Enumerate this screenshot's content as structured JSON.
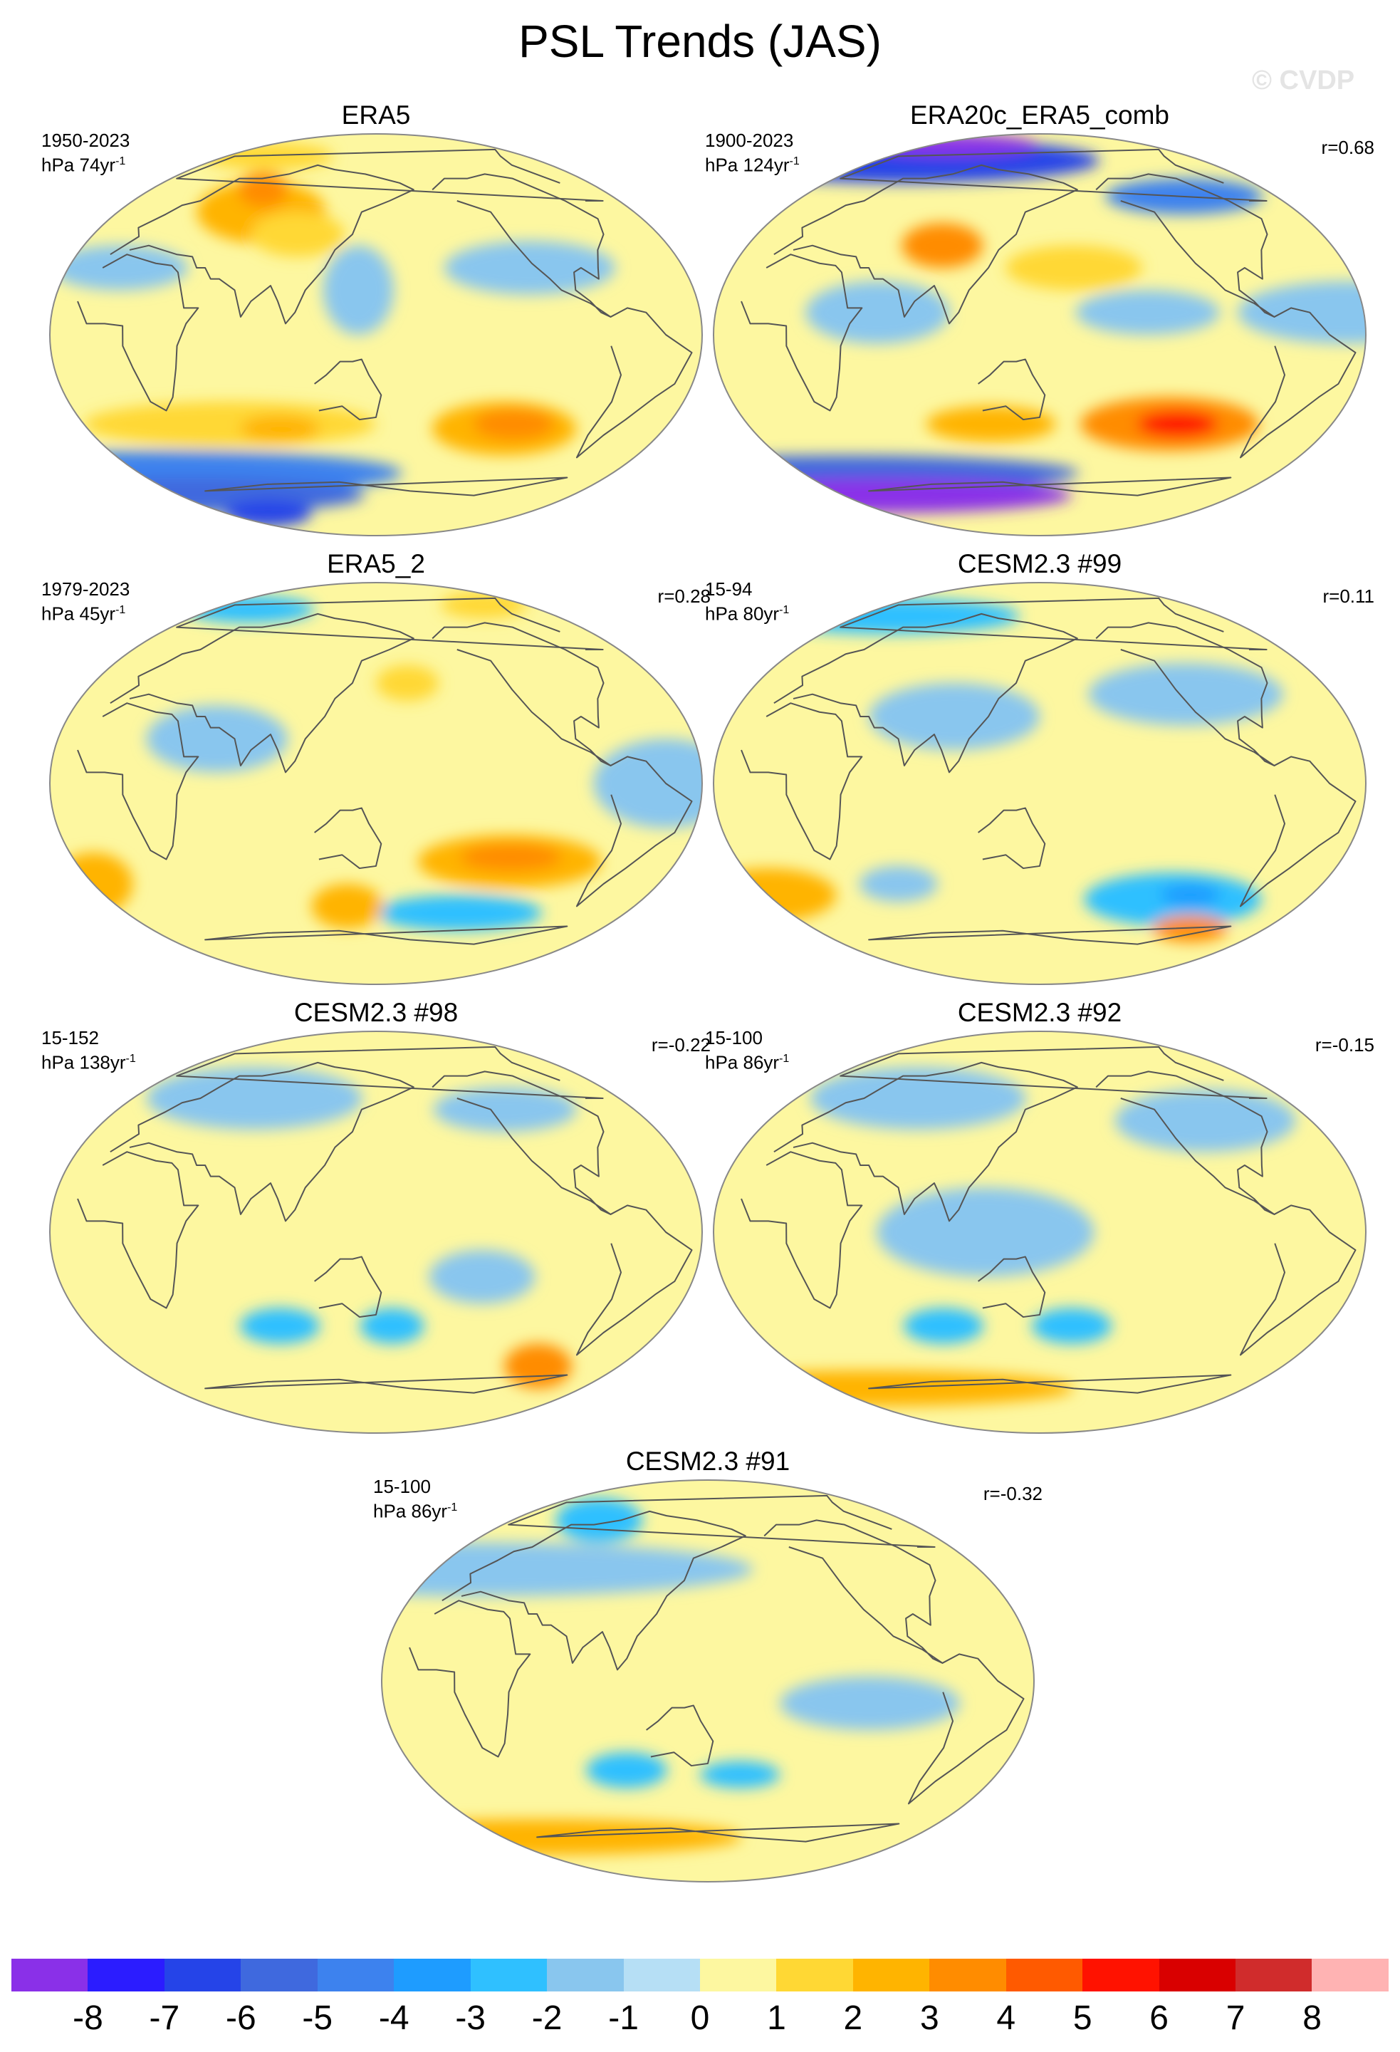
{
  "title": "PSL Trends (JAS)",
  "watermark": "© CVDP",
  "palette": {
    "ocean_neutral": "#fdf7a0",
    "coast": "#555555",
    "edge": "#888888"
  },
  "panels": [
    {
      "title": "ERA5",
      "years": "1950-2023",
      "units": "hPa 74yr",
      "unit_exp": "-1",
      "corr": "",
      "blobs": [
        {
          "lon": -10,
          "lat": -62,
          "rx": 180,
          "ry": 10,
          "level": -4
        },
        {
          "lon": -20,
          "lat": -72,
          "rx": 160,
          "ry": 8,
          "level": -5
        },
        {
          "lon": 20,
          "lat": -80,
          "rx": 40,
          "ry": 6,
          "level": -6
        },
        {
          "lon": -130,
          "lat": -42,
          "rx": 45,
          "ry": 12,
          "level": 2
        },
        {
          "lon": -125,
          "lat": -40,
          "rx": 25,
          "ry": 7,
          "level": 3
        },
        {
          "lon": 60,
          "lat": -40,
          "rx": 90,
          "ry": 10,
          "level": 1
        },
        {
          "lon": 90,
          "lat": -42,
          "rx": 25,
          "ry": 6,
          "level": 2
        },
        {
          "lon": 70,
          "lat": 55,
          "rx": 45,
          "ry": 14,
          "level": 2
        },
        {
          "lon": 60,
          "lat": 65,
          "rx": 20,
          "ry": 8,
          "level": 3
        },
        {
          "lon": 100,
          "lat": 45,
          "rx": 30,
          "ry": 10,
          "level": 1
        },
        {
          "lon": -120,
          "lat": 30,
          "rx": 50,
          "ry": 12,
          "level": -1
        },
        {
          "lon": 0,
          "lat": 30,
          "rx": 40,
          "ry": 10,
          "level": -1
        },
        {
          "lon": 140,
          "lat": 20,
          "rx": 20,
          "ry": 20,
          "level": -1
        },
        {
          "lon": 20,
          "lat": 80,
          "rx": 60,
          "ry": 6,
          "level": 1
        }
      ]
    },
    {
      "title": "ERA20c_ERA5_comb",
      "years": "1900-2023",
      "units": "hPa 124yr",
      "unit_exp": "-1",
      "corr": "r=0.68",
      "blobs": [
        {
          "lon": 0,
          "lat": 78,
          "rx": 180,
          "ry": 10,
          "level": -6
        },
        {
          "lon": 0,
          "lat": 85,
          "rx": 80,
          "ry": 5,
          "level": -8
        },
        {
          "lon": -100,
          "lat": 62,
          "rx": 60,
          "ry": 8,
          "level": -4
        },
        {
          "lon": 0,
          "lat": -62,
          "rx": 180,
          "ry": 8,
          "level": -5
        },
        {
          "lon": 0,
          "lat": -72,
          "rx": 180,
          "ry": 8,
          "level": -8
        },
        {
          "lon": -130,
          "lat": -40,
          "rx": 55,
          "ry": 12,
          "level": 3
        },
        {
          "lon": -125,
          "lat": -40,
          "rx": 25,
          "ry": 6,
          "level": 5
        },
        {
          "lon": 120,
          "lat": -40,
          "rx": 40,
          "ry": 8,
          "level": 2
        },
        {
          "lon": 170,
          "lat": 30,
          "rx": 40,
          "ry": 10,
          "level": 1
        },
        {
          "lon": 90,
          "lat": 40,
          "rx": 25,
          "ry": 10,
          "level": 3
        },
        {
          "lon": -40,
          "lat": 10,
          "rx": 60,
          "ry": 14,
          "level": -1
        },
        {
          "lon": 60,
          "lat": 10,
          "rx": 40,
          "ry": 14,
          "level": -1
        },
        {
          "lon": -150,
          "lat": 10,
          "rx": 40,
          "ry": 10,
          "level": -1
        }
      ]
    },
    {
      "title": "ERA5_2",
      "years": "1979-2023",
      "units": "hPa 45yr",
      "unit_exp": "-1",
      "corr": "r=0.28",
      "blobs": [
        {
          "lon": -130,
          "lat": -35,
          "rx": 55,
          "ry": 12,
          "level": 2
        },
        {
          "lon": -130,
          "lat": -33,
          "rx": 30,
          "ry": 6,
          "level": 3
        },
        {
          "lon": -30,
          "lat": -45,
          "rx": 25,
          "ry": 14,
          "level": 2
        },
        {
          "lon": -150,
          "lat": -58,
          "rx": 60,
          "ry": 8,
          "level": -2
        },
        {
          "lon": 130,
          "lat": -55,
          "rx": 25,
          "ry": 10,
          "level": 2
        },
        {
          "lon": 170,
          "lat": 45,
          "rx": 20,
          "ry": 8,
          "level": 1
        },
        {
          "lon": 10,
          "lat": 78,
          "rx": 60,
          "ry": 6,
          "level": -2
        },
        {
          "lon": -80,
          "lat": 80,
          "rx": 40,
          "ry": 6,
          "level": 1
        },
        {
          "lon": 60,
          "lat": 20,
          "rx": 40,
          "ry": 15,
          "level": -1
        },
        {
          "lon": -50,
          "lat": 0,
          "rx": 40,
          "ry": 20,
          "level": -1
        }
      ]
    },
    {
      "title": "CESM2.3 #99",
      "years": "15-94",
      "units": "hPa 80yr",
      "unit_exp": "-1",
      "corr": "r=0.11",
      "blobs": [
        {
          "lon": -120,
          "lat": -52,
          "rx": 60,
          "ry": 12,
          "level": -2
        },
        {
          "lon": -110,
          "lat": -50,
          "rx": 20,
          "ry": 5,
          "level": -3
        },
        {
          "lon": -90,
          "lat": -65,
          "rx": 30,
          "ry": 6,
          "level": 3
        },
        {
          "lon": -30,
          "lat": -50,
          "rx": 45,
          "ry": 12,
          "level": 2
        },
        {
          "lon": 0,
          "lat": 75,
          "rx": 120,
          "ry": 8,
          "level": -2
        },
        {
          "lon": -120,
          "lat": 40,
          "rx": 60,
          "ry": 14,
          "level": -1
        },
        {
          "lon": 100,
          "lat": 30,
          "rx": 50,
          "ry": 15,
          "level": -1
        },
        {
          "lon": 60,
          "lat": -45,
          "rx": 25,
          "ry": 8,
          "level": -1
        }
      ]
    },
    {
      "title": "CESM2.3 #98",
      "years": "15-152",
      "units": "hPa 138yr",
      "unit_exp": "-1",
      "corr": "r=-0.22",
      "blobs": [
        {
          "lon": 90,
          "lat": -42,
          "rx": 25,
          "ry": 8,
          "level": -2
        },
        {
          "lon": 160,
          "lat": -42,
          "rx": 20,
          "ry": 8,
          "level": -2
        },
        {
          "lon": -90,
          "lat": -60,
          "rx": 25,
          "ry": 10,
          "level": 3
        },
        {
          "lon": 60,
          "lat": 60,
          "rx": 80,
          "ry": 14,
          "level": -1
        },
        {
          "lon": -120,
          "lat": 55,
          "rx": 50,
          "ry": 10,
          "level": -1
        },
        {
          "lon": -150,
          "lat": -20,
          "rx": 30,
          "ry": 12,
          "level": -1
        }
      ]
    },
    {
      "title": "CESM2.3 #92",
      "years": "15-100",
      "units": "hPa 86yr",
      "unit_exp": "-1",
      "corr": "r=-0.15",
      "blobs": [
        {
          "lon": 90,
          "lat": -42,
          "rx": 25,
          "ry": 8,
          "level": -2
        },
        {
          "lon": 170,
          "lat": -42,
          "rx": 25,
          "ry": 8,
          "level": -2
        },
        {
          "lon": 0,
          "lat": -70,
          "rx": 180,
          "ry": 8,
          "level": 2
        },
        {
          "lon": 60,
          "lat": 60,
          "rx": 80,
          "ry": 14,
          "level": -1
        },
        {
          "lon": -100,
          "lat": 50,
          "rx": 60,
          "ry": 14,
          "level": -1
        },
        {
          "lon": 120,
          "lat": 0,
          "rx": 60,
          "ry": 20,
          "level": -1
        }
      ]
    },
    {
      "title": "CESM2.3 #91",
      "years": "15-100",
      "units": "hPa 86yr",
      "unit_exp": "-1",
      "corr": "r=-0.32",
      "blobs": [
        {
          "lon": 100,
          "lat": -40,
          "rx": 25,
          "ry": 8,
          "level": -2
        },
        {
          "lon": 170,
          "lat": -42,
          "rx": 25,
          "ry": 6,
          "level": -2
        },
        {
          "lon": 0,
          "lat": -70,
          "rx": 180,
          "ry": 8,
          "level": 2
        },
        {
          "lon": 50,
          "lat": 72,
          "rx": 40,
          "ry": 10,
          "level": -2
        },
        {
          "lon": 0,
          "lat": 50,
          "rx": 180,
          "ry": 12,
          "level": -1
        },
        {
          "lon": -120,
          "lat": -10,
          "rx": 50,
          "ry": 12,
          "level": -1
        }
      ]
    }
  ],
  "colorbar": {
    "colors": [
      "#8a30e8",
      "#2b1cff",
      "#2544e8",
      "#3f69de",
      "#3d82ee",
      "#1e9cff",
      "#2fc0ff",
      "#89c6ee",
      "#b6dff5",
      "#fdf7a0",
      "#ffd834",
      "#ffb400",
      "#ff8c00",
      "#ff5a00",
      "#ff1200",
      "#d90000",
      "#d02c2c",
      "#ffb3b3"
    ],
    "ticks": [
      "-8",
      "-7",
      "-6",
      "-5",
      "-4",
      "-3",
      "-2",
      "-1",
      "0",
      "1",
      "2",
      "3",
      "4",
      "5",
      "6",
      "7",
      "8"
    ]
  }
}
